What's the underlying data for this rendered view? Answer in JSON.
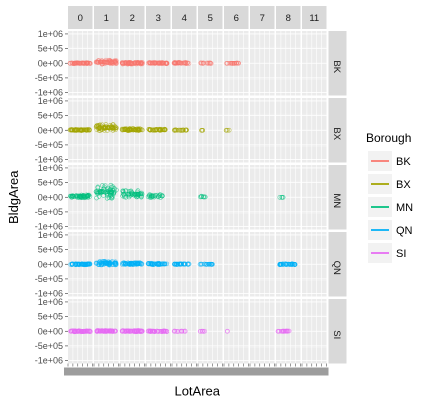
{
  "chart_data": {
    "type": "scatter",
    "xlabel": "LotArea",
    "ylabel": "BldgArea",
    "column_facets": [
      "0",
      "1",
      "2",
      "3",
      "4",
      "5",
      "6",
      "7",
      "8",
      "11"
    ],
    "row_facets": [
      "BK",
      "BX",
      "MN",
      "QN",
      "SI"
    ],
    "y_ticks": [
      "1e+06",
      "5e+05",
      "0e+00",
      "-5e+05",
      "-1e+06"
    ],
    "y_tick_values": [
      1000000,
      500000,
      0,
      -500000,
      -1000000
    ],
    "ylim": [
      -1100000,
      1100000
    ],
    "x_tick_labels_note": "overlapping, illegible",
    "legend": {
      "title": "Borough",
      "placement": "right",
      "entries": [
        {
          "label": "BK",
          "color": "#F8766D"
        },
        {
          "label": "BX",
          "color": "#A3A500"
        },
        {
          "label": "MN",
          "color": "#00BF7D"
        },
        {
          "label": "QN",
          "color": "#00B0F6"
        },
        {
          "label": "SI",
          "color": "#E76BF3"
        }
      ]
    },
    "series": [
      {
        "name": "BK",
        "color": "#F8766D",
        "clusters": [
          {
            "col": "0",
            "y_min": -20000,
            "y_max": 20000,
            "density": 0.9
          },
          {
            "col": "1",
            "y_min": -40000,
            "y_max": 120000,
            "density": 1.0
          },
          {
            "col": "2",
            "y_min": -30000,
            "y_max": 40000,
            "density": 1.0
          },
          {
            "col": "3",
            "y_min": -20000,
            "y_max": 30000,
            "density": 0.8
          },
          {
            "col": "4",
            "y_min": -20000,
            "y_max": 40000,
            "density": 0.5
          },
          {
            "col": "5",
            "y_min": -10000,
            "y_max": 20000,
            "density": 0.2
          },
          {
            "col": "6",
            "y_min": -10000,
            "y_max": 10000,
            "density": 0.3
          }
        ]
      },
      {
        "name": "BX",
        "color": "#A3A500",
        "clusters": [
          {
            "col": "0",
            "y_min": -10000,
            "y_max": 30000,
            "density": 0.9
          },
          {
            "col": "1",
            "y_min": -30000,
            "y_max": 200000,
            "density": 1.0
          },
          {
            "col": "2",
            "y_min": -20000,
            "y_max": 60000,
            "density": 0.9
          },
          {
            "col": "3",
            "y_min": -10000,
            "y_max": 40000,
            "density": 0.6
          },
          {
            "col": "4",
            "y_min": -10000,
            "y_max": 20000,
            "density": 0.3
          },
          {
            "col": "5",
            "y_min": -5000,
            "y_max": 5000,
            "density": 0.05
          },
          {
            "col": "6",
            "y_min": -5000,
            "y_max": 5000,
            "density": 0.05
          }
        ]
      },
      {
        "name": "MN",
        "color": "#00BF7D",
        "clusters": [
          {
            "col": "0",
            "y_min": -20000,
            "y_max": 80000,
            "density": 0.8
          },
          {
            "col": "1",
            "y_min": -40000,
            "y_max": 420000,
            "density": 1.0
          },
          {
            "col": "2",
            "y_min": -20000,
            "y_max": 230000,
            "density": 0.8
          },
          {
            "col": "3",
            "y_min": -10000,
            "y_max": 100000,
            "density": 0.4
          },
          {
            "col": "5",
            "y_min": -10000,
            "y_max": 40000,
            "density": 0.1
          },
          {
            "col": "8",
            "y_min": -5000,
            "y_max": 5000,
            "density": 0.05
          }
        ]
      },
      {
        "name": "QN",
        "color": "#00B0F6",
        "clusters": [
          {
            "col": "0",
            "y_min": -20000,
            "y_max": 20000,
            "density": 0.9
          },
          {
            "col": "1",
            "y_min": -30000,
            "y_max": 100000,
            "density": 1.0
          },
          {
            "col": "2",
            "y_min": -20000,
            "y_max": 60000,
            "density": 0.9
          },
          {
            "col": "3",
            "y_min": -20000,
            "y_max": 40000,
            "density": 0.7
          },
          {
            "col": "4",
            "y_min": -10000,
            "y_max": 20000,
            "density": 0.5
          },
          {
            "col": "5",
            "y_min": -10000,
            "y_max": 10000,
            "density": 0.3
          },
          {
            "col": "8",
            "y_min": -20000,
            "y_max": 20000,
            "density": 0.6
          }
        ]
      },
      {
        "name": "SI",
        "color": "#E76BF3",
        "clusters": [
          {
            "col": "0",
            "y_min": -20000,
            "y_max": 20000,
            "density": 0.9
          },
          {
            "col": "1",
            "y_min": -20000,
            "y_max": 30000,
            "density": 1.0
          },
          {
            "col": "2",
            "y_min": -20000,
            "y_max": 30000,
            "density": 0.9
          },
          {
            "col": "3",
            "y_min": -20000,
            "y_max": 20000,
            "density": 0.7
          },
          {
            "col": "4",
            "y_min": -10000,
            "y_max": 10000,
            "density": 0.2
          },
          {
            "col": "5",
            "y_min": -10000,
            "y_max": 10000,
            "density": 0.1
          },
          {
            "col": "6",
            "y_min": -5000,
            "y_max": 5000,
            "density": 0.02
          },
          {
            "col": "8",
            "y_min": -10000,
            "y_max": 10000,
            "density": 0.3
          }
        ]
      }
    ]
  }
}
